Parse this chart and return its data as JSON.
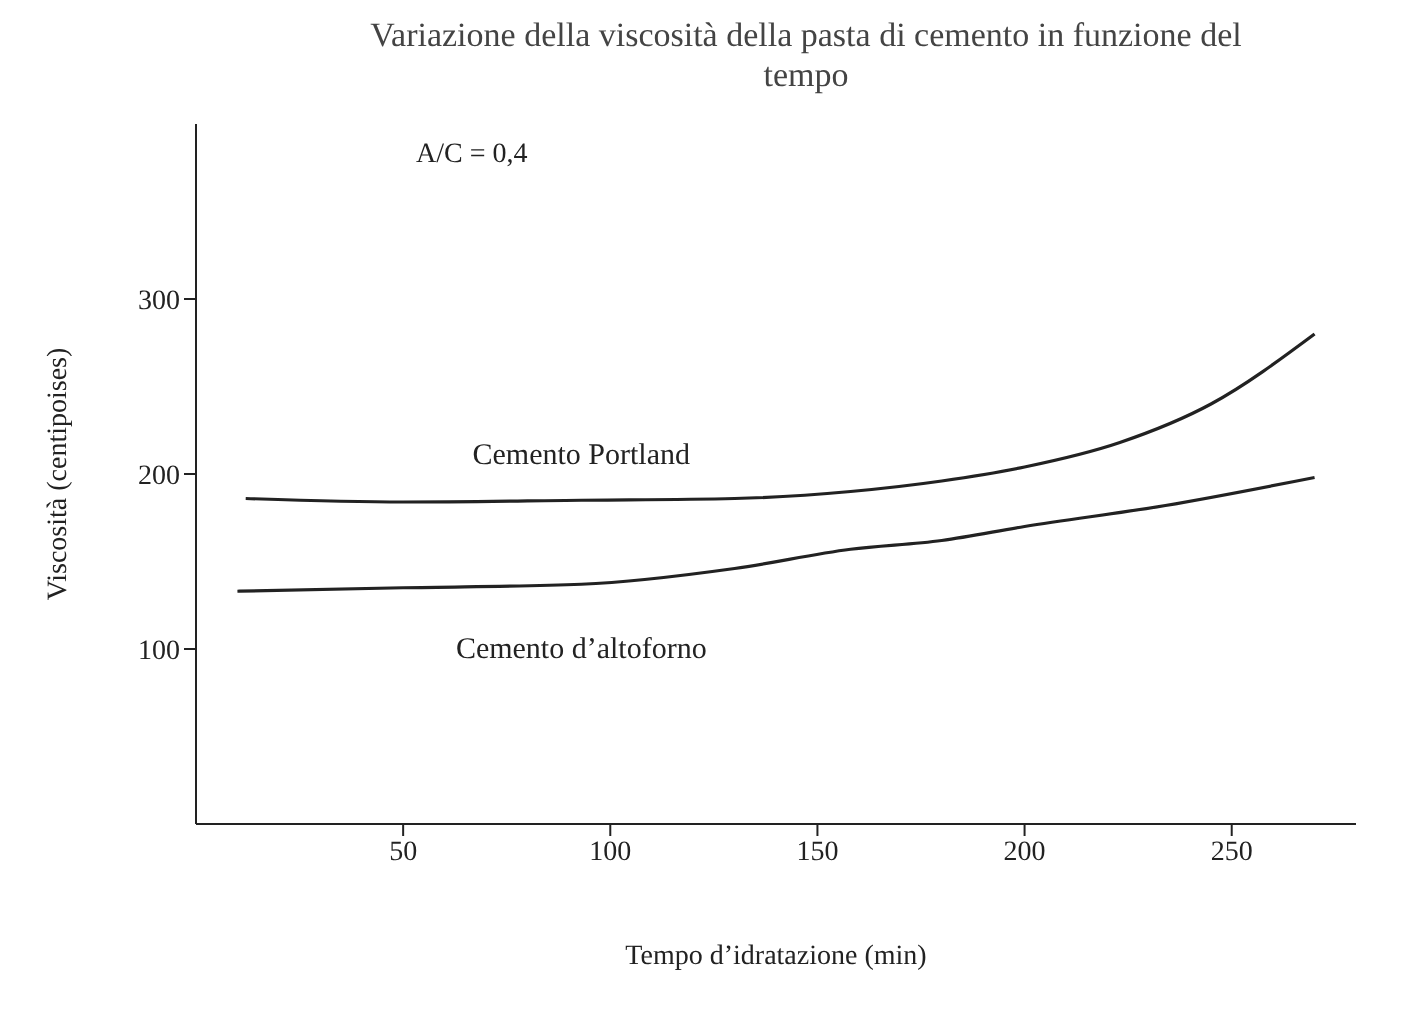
{
  "chart_data": {
    "type": "line",
    "title": "Variazione della viscosità della pasta di cemento in funzione del tempo",
    "xlabel": "Tempo d’idratazione (min)",
    "ylabel": "Viscosità (centipoises)",
    "annotations": [
      "A/C = 0,4"
    ],
    "xlim": [
      0,
      280
    ],
    "xticks": [
      50,
      100,
      150,
      200,
      250
    ],
    "ylim": [
      0,
      400
    ],
    "yticks": [
      100,
      200,
      300
    ],
    "legend": false,
    "marker": "none",
    "line_style": "solid",
    "series": [
      {
        "name": "Cemento Portland",
        "color": "#222222",
        "x": [
          12,
          50,
          93,
          130,
          158,
          180,
          200,
          223,
          245,
          270
        ],
        "values": [
          186,
          184,
          185,
          186,
          190,
          196,
          204,
          218,
          240,
          280
        ]
      },
      {
        "name": "Cemento d’altoforno",
        "color": "#222222",
        "x": [
          10,
          50,
          93,
          130,
          158,
          180,
          200,
          234,
          270
        ],
        "values": [
          133,
          135,
          137,
          146,
          157,
          162,
          170,
          182,
          198
        ]
      }
    ]
  }
}
